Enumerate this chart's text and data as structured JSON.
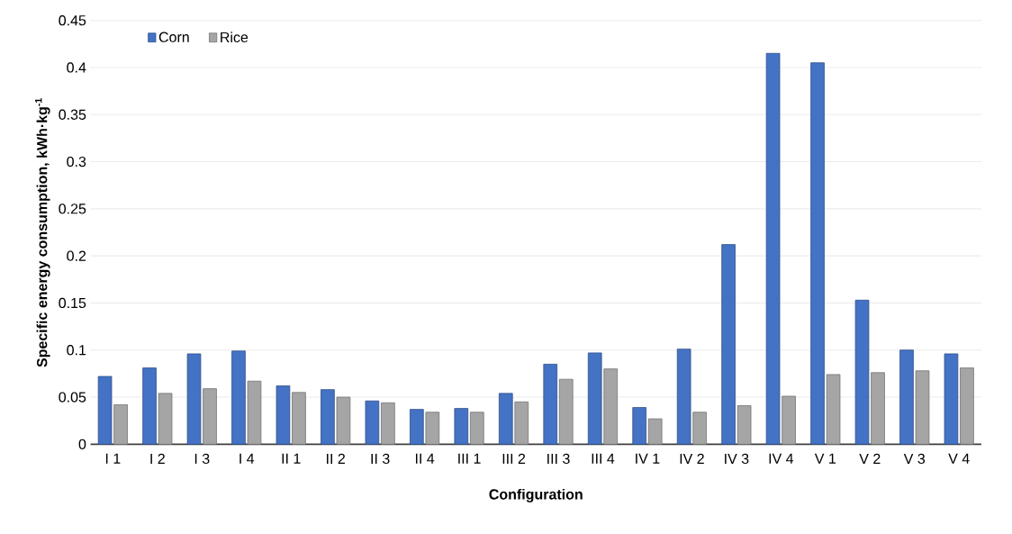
{
  "chart_data": {
    "type": "bar",
    "xlabel": "Configuration",
    "ylabel": "Specific energy consumption, kWh·kg$^{-1}$",
    "categories": [
      "I 1",
      "I 2",
      "I 3",
      "I 4",
      "II 1",
      "II 2",
      "II 3",
      "II 4",
      "III 1",
      "III 2",
      "III 3",
      "III 4",
      "IV 1",
      "IV 2",
      "IV 3",
      "IV 4",
      "V 1",
      "V 2",
      "V 3",
      "V 4"
    ],
    "series": [
      {
        "name": "Corn",
        "color": "#4472c4",
        "values": [
          0.072,
          0.081,
          0.096,
          0.099,
          0.062,
          0.058,
          0.046,
          0.037,
          0.038,
          0.054,
          0.085,
          0.097,
          0.039,
          0.101,
          0.212,
          0.415,
          0.405,
          0.153,
          0.1,
          0.096
        ]
      },
      {
        "name": "Rice",
        "color": "#a5a5a5",
        "values": [
          0.042,
          0.054,
          0.059,
          0.067,
          0.055,
          0.05,
          0.044,
          0.034,
          0.034,
          0.045,
          0.069,
          0.08,
          0.027,
          0.034,
          0.041,
          0.051,
          0.074,
          0.076,
          0.078,
          0.081
        ]
      }
    ],
    "ylim": [
      0,
      0.45
    ],
    "yticks": [
      0,
      0.05,
      0.1,
      0.15,
      0.2,
      0.25,
      0.3,
      0.35,
      0.4,
      0.45
    ],
    "grid": "y",
    "legend": "top left"
  }
}
